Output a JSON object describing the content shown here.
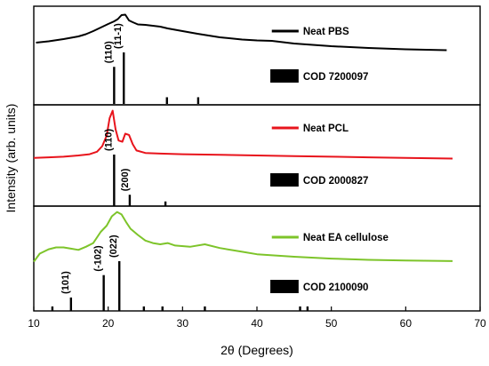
{
  "chart_data": {
    "type": "line",
    "xlabel": "2θ (Degrees)",
    "ylabel": "Intensity (arb. units)",
    "xlim": [
      10,
      70
    ],
    "xticks": [
      10,
      20,
      30,
      40,
      50,
      60,
      70
    ],
    "panels": [
      {
        "name": "Neat PBS",
        "color": "#000000",
        "curve": {
          "x": [
            10.3,
            12,
            14,
            16,
            17,
            18,
            19,
            20,
            20.8,
            21.3,
            21.8,
            22.3,
            22.8,
            23.3,
            24,
            25,
            26,
            27,
            28,
            30,
            32,
            35,
            38,
            40,
            42,
            45,
            50,
            55,
            60,
            65.5
          ],
          "y": [
            0.62,
            0.65,
            0.7,
            0.76,
            0.81,
            0.88,
            0.96,
            1.04,
            1.1,
            1.15,
            1.24,
            1.25,
            1.12,
            1.08,
            1.03,
            1.02,
            1.0,
            0.98,
            0.94,
            0.88,
            0.82,
            0.74,
            0.69,
            0.67,
            0.66,
            0.6,
            0.54,
            0.5,
            0.47,
            0.45
          ]
        },
        "reference": {
          "label": "COD 7200097",
          "x": [
            20.8,
            22.1,
            27.9,
            32.1
          ],
          "intensity": [
            72,
            100,
            13,
            13
          ]
        },
        "peak_labels": [
          {
            "text": "(110)",
            "x": 20.8
          },
          {
            "text": "(11-1)",
            "x": 22.1
          }
        ]
      },
      {
        "name": "Neat PCL",
        "color": "#e8141c",
        "curve": {
          "x": [
            10,
            12,
            14,
            16,
            17.5,
            18.5,
            19.2,
            19.8,
            20.2,
            20.6,
            21,
            21.4,
            21.9,
            22.3,
            22.8,
            23.3,
            23.8,
            25,
            27,
            30,
            35,
            40,
            45,
            50,
            55,
            60,
            66.3
          ],
          "y": [
            0.56,
            0.57,
            0.58,
            0.6,
            0.62,
            0.66,
            0.75,
            0.92,
            1.2,
            1.32,
            1.02,
            0.84,
            0.82,
            0.95,
            0.93,
            0.78,
            0.68,
            0.64,
            0.63,
            0.62,
            0.61,
            0.6,
            0.59,
            0.58,
            0.57,
            0.56,
            0.55
          ]
        },
        "reference": {
          "label": "COD 2000827",
          "x": [
            20.8,
            22.9,
            27.7
          ],
          "intensity": [
            100,
            22,
            9
          ]
        },
        "peak_labels": [
          {
            "text": "(110)",
            "x": 20.8
          },
          {
            "text": "(200)",
            "x": 23.0
          }
        ]
      },
      {
        "name": "Neat EA cellulose",
        "color": "#7dc42a",
        "curve": {
          "x": [
            10,
            10.8,
            12,
            13,
            14,
            15,
            16,
            17,
            18,
            19,
            19.8,
            20.5,
            21.2,
            21.8,
            22.4,
            23,
            24,
            25,
            26,
            27,
            28,
            29,
            31,
            33,
            35,
            38,
            40,
            45,
            50,
            55,
            60,
            66.3
          ],
          "y": [
            0.32,
            0.45,
            0.52,
            0.55,
            0.55,
            0.53,
            0.51,
            0.56,
            0.62,
            0.8,
            0.9,
            1.05,
            1.12,
            1.08,
            0.96,
            0.85,
            0.75,
            0.66,
            0.62,
            0.6,
            0.62,
            0.58,
            0.56,
            0.6,
            0.54,
            0.48,
            0.44,
            0.4,
            0.37,
            0.35,
            0.34,
            0.33
          ]
        },
        "reference": {
          "label": "COD 2100090",
          "x": [
            12.5,
            15.0,
            19.4,
            21.5,
            24.8,
            27.3,
            33.0,
            45.8,
            46.8
          ],
          "intensity": [
            9,
            27,
            72,
            100,
            9,
            9,
            9,
            9,
            9
          ]
        },
        "peak_labels": [
          {
            "text": "(101)",
            "x": 15.0
          },
          {
            "text": "(-102)",
            "x": 19.4
          },
          {
            "text": "(022)",
            "x": 21.5
          }
        ]
      }
    ]
  }
}
